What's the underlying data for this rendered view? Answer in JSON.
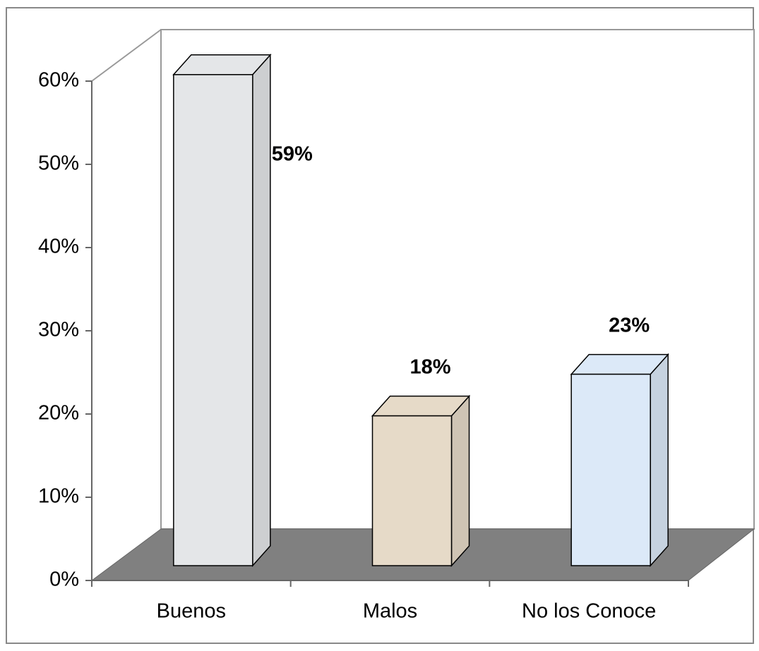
{
  "chart_data": {
    "type": "bar3d",
    "categories": [
      "Buenos",
      "Malos",
      "No los Conoce"
    ],
    "values": [
      59,
      18,
      23
    ],
    "value_labels": [
      "59%",
      "18%",
      "23%"
    ],
    "colors": [
      "#e4e6e8",
      "#e6dac8",
      "#dce9f8"
    ],
    "ylim": [
      0,
      60
    ],
    "yticks": [
      {
        "value": 0,
        "label": "0%"
      },
      {
        "value": 10,
        "label": "10%"
      },
      {
        "value": 20,
        "label": "20%"
      },
      {
        "value": 30,
        "label": "30%"
      },
      {
        "value": 40,
        "label": "40%"
      },
      {
        "value": 50,
        "label": "50%"
      },
      {
        "value": 60,
        "label": "60%"
      }
    ]
  }
}
